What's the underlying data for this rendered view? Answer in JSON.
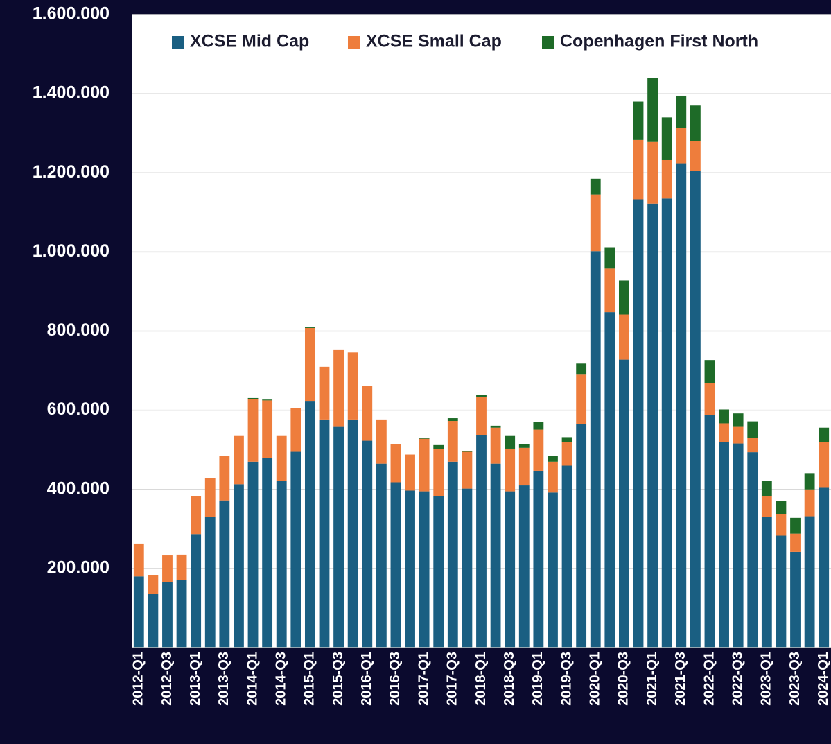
{
  "chart_data": {
    "type": "stacked_bar",
    "categories": [
      "2012-Q1",
      null,
      "2012-Q3",
      null,
      "2013-Q1",
      null,
      "2013-Q3",
      null,
      "2014-Q1",
      null,
      "2014-Q3",
      null,
      "2015-Q1",
      null,
      "2015-Q3",
      null,
      "2016-Q1",
      null,
      "2016-Q3",
      null,
      "2017-Q1",
      null,
      "2017-Q3",
      null,
      "2018-Q1",
      null,
      "2018-Q3",
      null,
      "2019-Q1",
      null,
      "2019-Q3",
      null,
      "2020-Q1",
      null,
      "2020-Q3",
      null,
      "2021-Q1",
      null,
      "2021-Q3",
      null,
      "2022-Q1",
      null,
      "2022-Q3",
      null,
      "2023-Q1",
      null,
      "2023-Q3",
      null,
      "2024-Q1"
    ],
    "series": [
      {
        "name": "XCSE Mid Cap",
        "color": "#1a5f82",
        "values": [
          180000,
          135000,
          165000,
          170000,
          287000,
          330000,
          372000,
          413000,
          470000,
          480000,
          422000,
          495000,
          622000,
          575000,
          558000,
          575000,
          523000,
          465000,
          418000,
          397000,
          395000,
          383000,
          470000,
          402000,
          538000,
          465000,
          395000,
          410000,
          447000,
          392000,
          460000,
          566000,
          1002000,
          848000,
          728000,
          1133000,
          1122000,
          1135000,
          1224000,
          1205000,
          588000,
          520000,
          516000,
          494000,
          330000,
          283000,
          242000,
          332000,
          404000
        ]
      },
      {
        "name": "XCSE Small Cap",
        "color": "#ee7d3c",
        "values": [
          83000,
          49000,
          68000,
          65000,
          96000,
          98000,
          112000,
          122000,
          159000,
          145000,
          113000,
          110000,
          186000,
          135000,
          194000,
          171000,
          139000,
          110000,
          97000,
          91000,
          133000,
          119000,
          103000,
          93000,
          95000,
          91000,
          108000,
          95000,
          104000,
          78000,
          60000,
          124000,
          143000,
          110000,
          114000,
          150000,
          156000,
          97000,
          89000,
          75000,
          80000,
          47000,
          42000,
          37000,
          52000,
          54000,
          46000,
          68000,
          116000
        ]
      },
      {
        "name": "Copenhagen First North",
        "color": "#1e6b28",
        "values": [
          0,
          0,
          0,
          0,
          0,
          0,
          0,
          0,
          2000,
          2000,
          0,
          0,
          2000,
          0,
          0,
          0,
          0,
          0,
          0,
          0,
          2000,
          10000,
          7000,
          2000,
          5000,
          5000,
          32000,
          10000,
          20000,
          15000,
          12000,
          28000,
          40000,
          54000,
          86000,
          97000,
          162000,
          108000,
          82000,
          90000,
          59000,
          35000,
          34000,
          41000,
          40000,
          33000,
          40000,
          41000,
          36000
        ]
      }
    ],
    "ylim": [
      0,
      1600000
    ],
    "yticks": [
      {
        "value": 200000,
        "label": "200.000"
      },
      {
        "value": 400000,
        "label": "400.000"
      },
      {
        "value": 600000,
        "label": "600.000"
      },
      {
        "value": 800000,
        "label": "800.000"
      },
      {
        "value": 1000000,
        "label": "1.000.000"
      },
      {
        "value": 1200000,
        "label": "1.200.000"
      },
      {
        "value": 1400000,
        "label": "1.400.000"
      },
      {
        "value": 1600000,
        "label": "1.600.000"
      }
    ],
    "grid": true,
    "legend": "top"
  }
}
